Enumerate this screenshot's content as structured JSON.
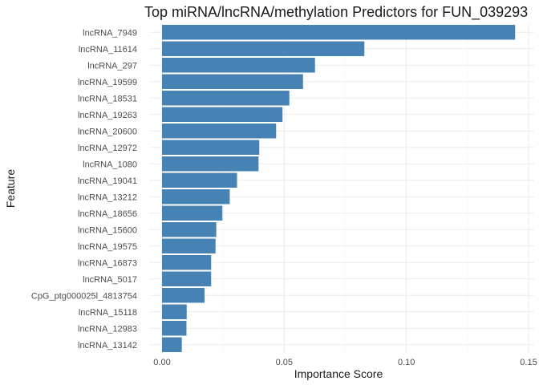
{
  "chart_data": {
    "type": "bar",
    "orientation": "horizontal",
    "title": "Top miRNA/lncRNA/methylation Predictors for FUN_039293",
    "xlabel": "Importance Score",
    "ylabel": "Feature",
    "xlim": [
      0,
      0.15
    ],
    "xticks": [
      0,
      0.05,
      0.1,
      0.15
    ],
    "xtick_labels": [
      "0.00",
      "0.05",
      "0.10",
      "0.15"
    ],
    "bar_color": "#4682B4",
    "grid": true,
    "categories": [
      "lncRNA_7949",
      "lncRNA_11614",
      "lncRNA_297",
      "lncRNA_19599",
      "lncRNA_18531",
      "lncRNA_19263",
      "lncRNA_20600",
      "lncRNA_12972",
      "lncRNA_1080",
      "lncRNA_19041",
      "lncRNA_13212",
      "lncRNA_18656",
      "lncRNA_15600",
      "lncRNA_19575",
      "lncRNA_16873",
      "lncRNA_5017",
      "CpG_ptg000025l_4813754",
      "lncRNA_15118",
      "lncRNA_12983",
      "lncRNA_13142"
    ],
    "values": [
      0.1445,
      0.0828,
      0.0626,
      0.0577,
      0.0521,
      0.0493,
      0.0467,
      0.0398,
      0.0395,
      0.0307,
      0.0277,
      0.0247,
      0.0222,
      0.0219,
      0.0201,
      0.0201,
      0.0174,
      0.0101,
      0.01,
      0.0081
    ]
  }
}
